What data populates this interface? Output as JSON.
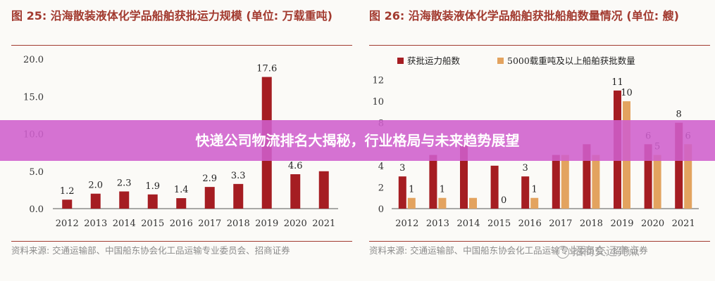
{
  "left": {
    "title": "图 25: 沿海散装液体化学品船舶获批运力规模 (单位: 万载重吨)",
    "source": "资料来源: 交通运输部、中国船东协会化工品运输专业委员会、招商证券"
  },
  "right": {
    "title": "图 26: 沿海散装液体化学品船舶获批船舶数量情况 (单位: 艘)",
    "source": "资料来源: 交通运输部、中国船东协会化工品运输专业委员会、招商证券"
  },
  "banner": {
    "text": "快递公司物流排名大揭秘，行业格局与未来趋势展望"
  },
  "watermark": {
    "text": "招商交运亮点"
  },
  "colors": {
    "bar": "#a51d22",
    "bar2": "#e3a35f",
    "accent": "#a23a2f"
  },
  "chart_data": [
    {
      "type": "bar",
      "categories": [
        "2012",
        "2013",
        "2014",
        "2015",
        "2016",
        "2017",
        "2018",
        "2019",
        "2020",
        "2021"
      ],
      "values": [
        1.2,
        2.0,
        2.3,
        1.9,
        1.4,
        2.9,
        3.3,
        17.6,
        4.6,
        5.0
      ],
      "value_labels": [
        "1.2",
        "2.0",
        "2.3",
        "1.9",
        "1.4",
        "2.9",
        "3.3",
        "17.6",
        "4.6",
        ""
      ],
      "ylim": [
        0,
        20
      ],
      "yticks": [
        "0.0",
        "5.0",
        "10.0",
        "15.0",
        "20.0"
      ],
      "ytick_values": [
        0,
        5,
        10,
        15,
        20
      ]
    },
    {
      "type": "bar",
      "categories": [
        "2012",
        "2013",
        "2014",
        "2015",
        "2016",
        "2017",
        "2018",
        "2019",
        "2020",
        "2021"
      ],
      "series": [
        {
          "name": "获批运力船数",
          "values": [
            3,
            5,
            6,
            4,
            3,
            5,
            6,
            11,
            6,
            8
          ],
          "labels": [
            "3",
            "",
            "",
            "",
            "3",
            "",
            "",
            "11",
            "6",
            "8"
          ]
        },
        {
          "name": "5000载重吨及以上船舶获批数量",
          "values": [
            1,
            1,
            1,
            0,
            1,
            5,
            5,
            10,
            5,
            6
          ],
          "labels": [
            "1",
            "1",
            "",
            "0",
            "1",
            "",
            "",
            "10",
            "5",
            "6"
          ]
        }
      ],
      "ylim": [
        0,
        14
      ],
      "yticks": [
        "0",
        "2",
        "4",
        "6",
        "8",
        "10",
        "12"
      ],
      "ytick_values": [
        0,
        2,
        4,
        6,
        8,
        10,
        12
      ],
      "legend": "top"
    }
  ]
}
